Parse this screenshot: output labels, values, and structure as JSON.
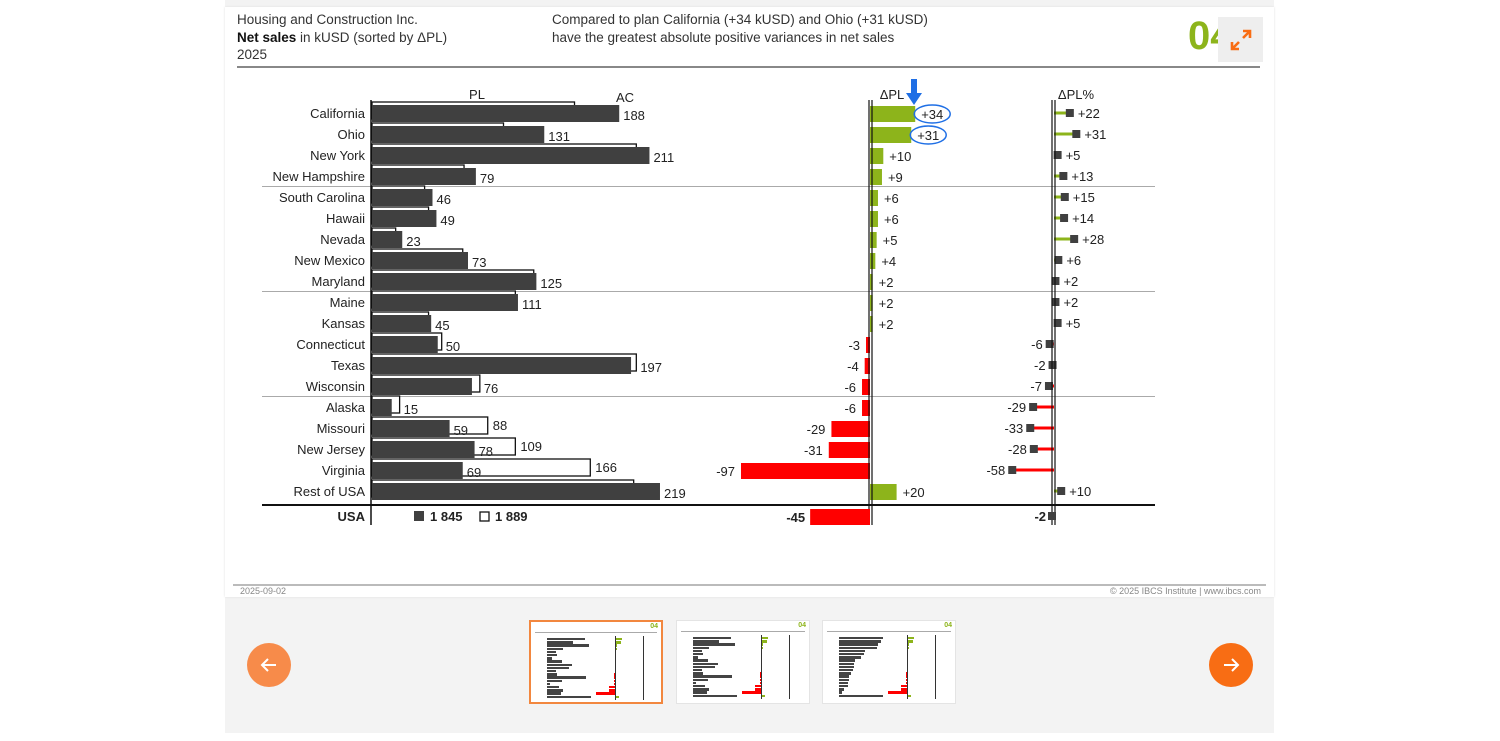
{
  "header": {
    "company": "Housing and Construction Inc.",
    "measure_bold": "Net sales",
    "measure_rest": " in kUSD (sorted by ΔPL)",
    "period": "2025",
    "message_line1": "Compared to plan California (+34 kUSD) and Ohio (+31 kUSD)",
    "message_line2": "have the greatest absolute positive variances in net sales",
    "page_number": "04",
    "expand_icon": "expand-arrows-icon"
  },
  "footer": {
    "date": "2025-09-02",
    "copyright": "© 2025 IBCS Institute | www.ibcs.com"
  },
  "navigation": {
    "prev_icon": "arrow-left-icon",
    "next_icon": "arrow-right-icon",
    "prev_color": "#f78b4a",
    "next_color": "#f86d14",
    "thumbnails": [
      {
        "page": "04",
        "active": true
      },
      {
        "page": "04",
        "active": false
      },
      {
        "page": "04",
        "active": false
      }
    ]
  },
  "colors": {
    "actual": "#404040",
    "positive": "#8db41b",
    "negative": "#ff0000",
    "highlight": "#1f6fe5",
    "accent": "#f86d14"
  },
  "chart_data": {
    "type": "bar",
    "unit": "kUSD",
    "column_labels": {
      "pl": "PL",
      "ac": "AC",
      "delta_pl": "ΔPL",
      "delta_pl_pct": "ΔPL%"
    },
    "categories": [
      "California",
      "Ohio",
      "New York",
      "New Hampshire",
      "South Carolina",
      "Hawaii",
      "Nevada",
      "New Mexico",
      "Maryland",
      "Maine",
      "Kansas",
      "Connecticut",
      "Texas",
      "Wisconsin",
      "Alaska",
      "Missouri",
      "New Jersey",
      "Virginia",
      "Rest of USA"
    ],
    "series": [
      {
        "name": "AC",
        "values": [
          188,
          131,
          211,
          79,
          46,
          49,
          23,
          73,
          125,
          111,
          45,
          50,
          197,
          76,
          15,
          59,
          78,
          69,
          219
        ]
      },
      {
        "name": "PL",
        "values": [
          154,
          100,
          201,
          70,
          40,
          43,
          18,
          69,
          123,
          109,
          43,
          53,
          201,
          82,
          21,
          88,
          109,
          166,
          199
        ]
      },
      {
        "name": "ΔPL",
        "values": [
          34,
          31,
          10,
          9,
          6,
          6,
          5,
          4,
          2,
          2,
          2,
          -3,
          -4,
          -6,
          -6,
          -29,
          -31,
          -97,
          20
        ]
      },
      {
        "name": "ΔPL%",
        "values": [
          22,
          31,
          5,
          13,
          15,
          14,
          28,
          6,
          2,
          2,
          5,
          -6,
          -2,
          -7,
          -29,
          -33,
          -28,
          -58,
          10
        ]
      }
    ],
    "group_separators_after": [
      "New Hampshire",
      "Maryland",
      "Wisconsin"
    ],
    "highlighted": [
      "California",
      "Ohio"
    ],
    "total": {
      "label": "USA",
      "ac": "1 845",
      "pl": "1 889",
      "delta_pl": -45,
      "delta_pl_pct": -2
    }
  }
}
